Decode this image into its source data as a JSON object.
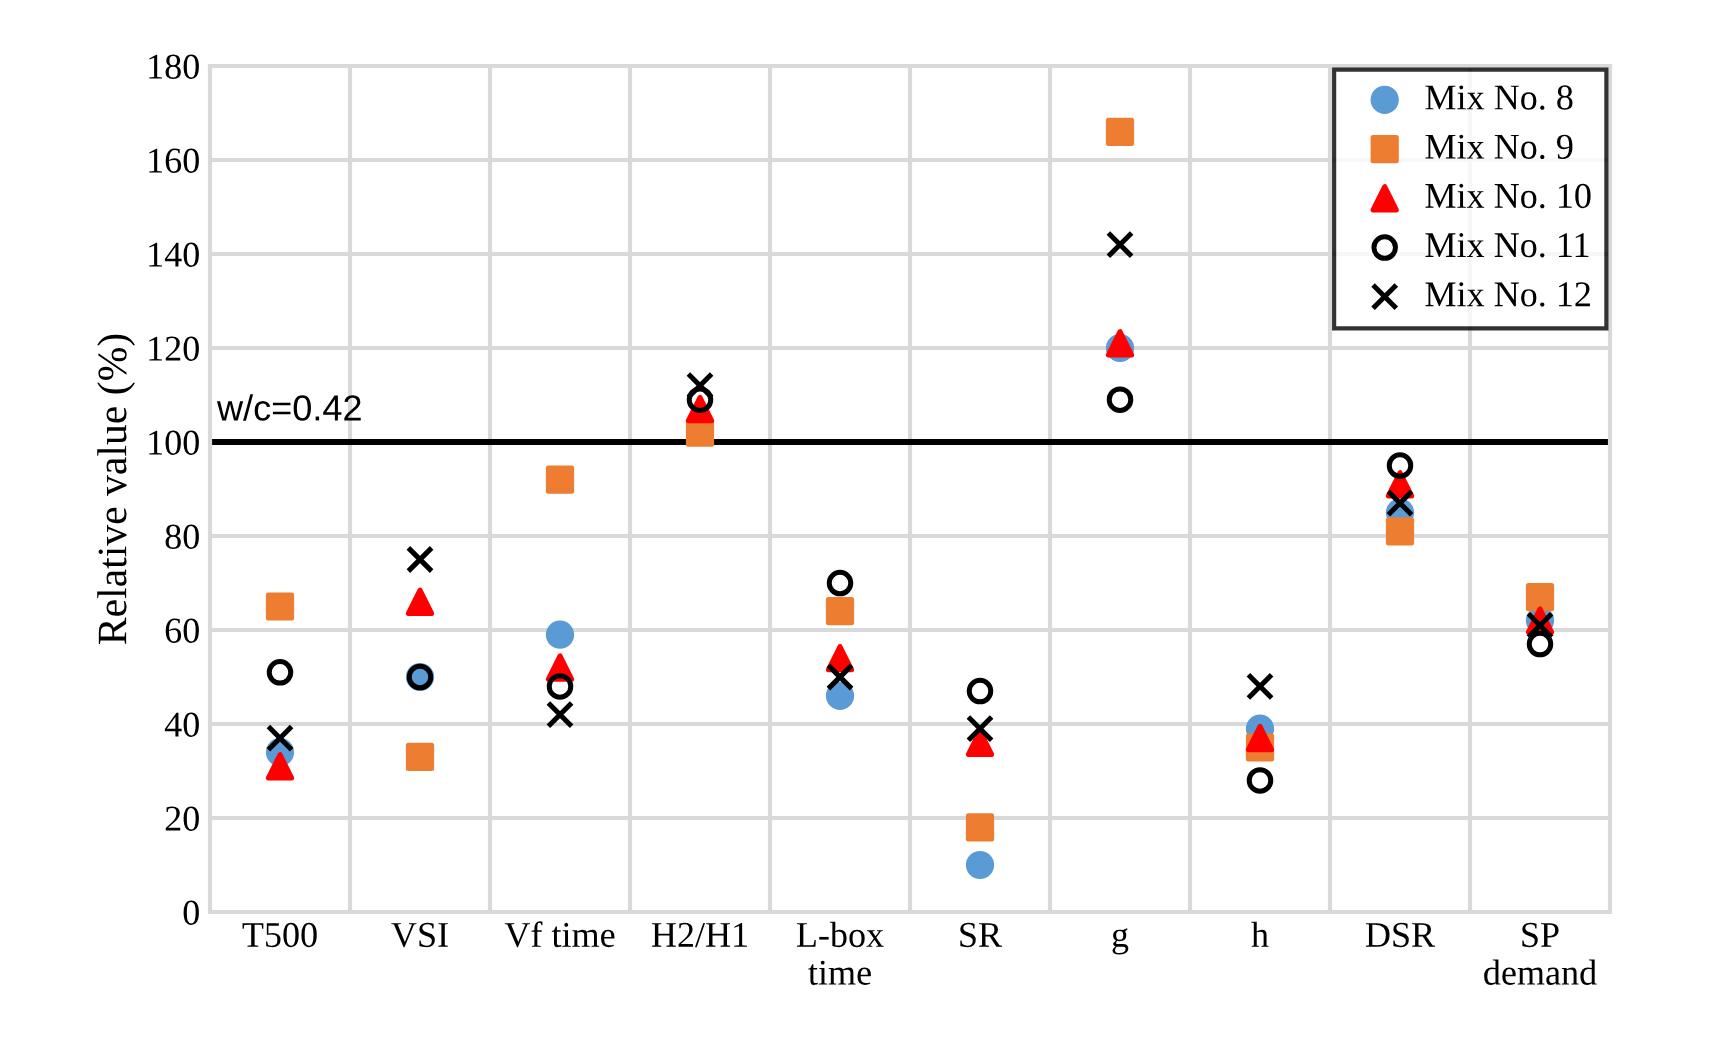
{
  "chart_data": {
    "type": "scatter",
    "ylabel": "Relative value (%)",
    "categories": [
      "T500",
      "VSI",
      "Vf time",
      "H2/H1",
      "L-box\ntime",
      "SR",
      "g",
      "h",
      "DSR",
      "SP\ndemand"
    ],
    "series": [
      {
        "name": "Mix No. 8",
        "color": "#5b9bd5",
        "marker": "circle",
        "values": [
          34,
          50,
          59,
          null,
          46,
          10,
          120,
          39,
          85,
          62
        ]
      },
      {
        "name": "Mix No. 9",
        "color": "#ed7d31",
        "marker": "square",
        "values": [
          65,
          33,
          92,
          102,
          64,
          18,
          166,
          35,
          81,
          67
        ]
      },
      {
        "name": "Mix No. 10",
        "color": "#ff0000",
        "marker": "triangle",
        "values": [
          31,
          66,
          52,
          107,
          54,
          36,
          121,
          37,
          91,
          62
        ]
      },
      {
        "name": "Mix No. 11",
        "color": "#000000",
        "marker": "open circle",
        "values": [
          51,
          50,
          48,
          109,
          70,
          47,
          109,
          28,
          95,
          57
        ]
      },
      {
        "name": "Mix No. 12",
        "color": "#000000",
        "marker": "cross",
        "values": [
          37,
          75,
          42,
          112,
          50,
          39,
          142,
          48,
          87,
          61
        ]
      }
    ],
    "ylim": [
      0,
      180
    ],
    "yticks": [
      0,
      20,
      40,
      60,
      80,
      100,
      120,
      140,
      160,
      180
    ],
    "ref_lines": [
      {
        "axis": "y",
        "value": 100,
        "color": "#000000"
      }
    ],
    "annotations": [
      "w/c=0.42"
    ],
    "grid": true,
    "legend": "top right"
  }
}
